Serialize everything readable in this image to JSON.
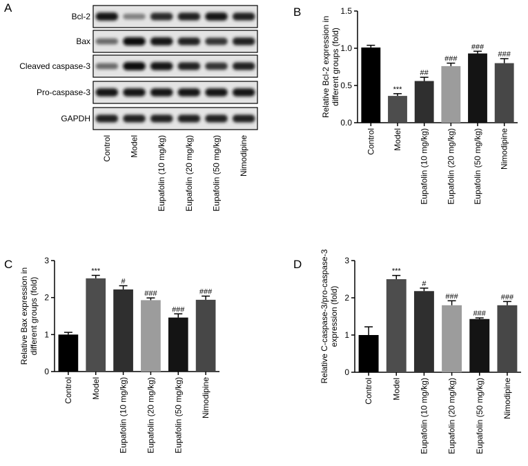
{
  "panels": {
    "a": "A",
    "b": "B",
    "c": "C",
    "d": "D"
  },
  "blot": {
    "rows": [
      "Bcl-2",
      "Bax",
      "Cleaved caspase-3",
      "Pro-caspase-3",
      "GAPDH"
    ],
    "lanes": [
      "Control",
      "Model",
      "Eupafolin (10 mg/kg)",
      "Eupafolin (20 mg/kg)",
      "Eupafolin (50 mg/kg)",
      "Nimodipine"
    ],
    "band_intensity": [
      [
        0.95,
        0.45,
        0.85,
        0.9,
        0.95,
        0.9
      ],
      [
        0.55,
        1.0,
        0.95,
        0.9,
        0.8,
        0.9
      ],
      [
        0.55,
        1.0,
        0.95,
        0.9,
        0.8,
        0.9
      ],
      [
        0.95,
        0.95,
        0.95,
        0.95,
        0.95,
        0.95
      ],
      [
        0.9,
        0.9,
        0.9,
        0.9,
        0.9,
        0.9
      ]
    ]
  },
  "chart_data": [
    {
      "type": "bar",
      "panel": "B",
      "categories": [
        "Control",
        "Model",
        "Eupafolin (10 mg/kg)",
        "Eupafolin (20 mg/kg)",
        "Eupafolin (50 mg/kg)",
        "Nimodipine"
      ],
      "values": [
        1.01,
        0.36,
        0.56,
        0.76,
        0.93,
        0.8
      ],
      "errors": [
        0.03,
        0.03,
        0.05,
        0.04,
        0.03,
        0.06
      ],
      "annotations": [
        "",
        "***",
        "##",
        "###",
        "###",
        "###"
      ],
      "colors": [
        "#000000",
        "#4d4d4d",
        "#2f2f2f",
        "#9c9c9c",
        "#141414",
        "#474747"
      ],
      "ylabel": "Relative Bcl-2 expression in different groups (fold)",
      "ylim": [
        0,
        1.5
      ],
      "yticks": [
        "0.0",
        "0.5",
        "1.0",
        "1.5"
      ],
      "ytick_values": [
        0,
        0.5,
        1.0,
        1.5
      ]
    },
    {
      "type": "bar",
      "panel": "C",
      "categories": [
        "Control",
        "Model",
        "Eupafolin (10 mg/kg)",
        "Eupafolin (20 mg/kg)",
        "Eupafolin (50 mg/kg)",
        "Nimodipine"
      ],
      "values": [
        1.0,
        2.52,
        2.22,
        1.93,
        1.46,
        1.94
      ],
      "errors": [
        0.06,
        0.08,
        0.1,
        0.06,
        0.1,
        0.1
      ],
      "annotations": [
        "",
        "***",
        "#",
        "###",
        "###",
        "###"
      ],
      "colors": [
        "#000000",
        "#4d4d4d",
        "#2f2f2f",
        "#9c9c9c",
        "#141414",
        "#474747"
      ],
      "ylabel": "Relative Bax expression in different groups (fold)",
      "ylim": [
        0,
        3
      ],
      "yticks": [
        "0",
        "1",
        "2",
        "3"
      ],
      "ytick_values": [
        0,
        1,
        2,
        3
      ]
    },
    {
      "type": "bar",
      "panel": "D",
      "categories": [
        "Control",
        "Model",
        "Eupafolin (10 mg/kg)",
        "Eupafolin (20 mg/kg)",
        "Eupafolin (50 mg/kg)",
        "Nimodipine"
      ],
      "values": [
        1.0,
        2.5,
        2.18,
        1.8,
        1.43,
        1.8
      ],
      "errors": [
        0.22,
        0.1,
        0.08,
        0.12,
        0.03,
        0.1
      ],
      "annotations": [
        "",
        "***",
        "#",
        "###",
        "###",
        "###"
      ],
      "colors": [
        "#000000",
        "#4d4d4d",
        "#2f2f2f",
        "#9c9c9c",
        "#141414",
        "#474747"
      ],
      "ylabel": "Relative C-caspase-3/pro-caspase-3 expression (fold)",
      "ylim": [
        0,
        3
      ],
      "yticks": [
        "0",
        "1",
        "2",
        "3"
      ],
      "ytick_values": [
        0,
        1,
        2,
        3
      ]
    }
  ]
}
